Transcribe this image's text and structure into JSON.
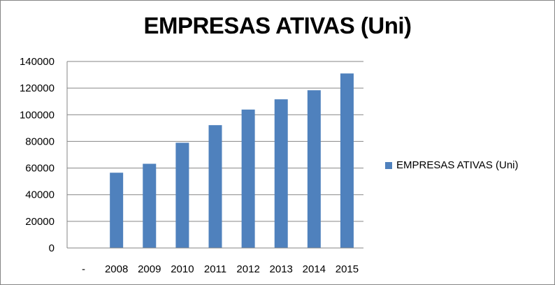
{
  "chart_data": {
    "type": "bar",
    "title": "EMPRESAS ATIVAS (Uni)",
    "xlabel": "",
    "ylabel": "",
    "categories": [
      "-",
      "2008",
      "2009",
      "2010",
      "2011",
      "2012",
      "2013",
      "2014",
      "2015"
    ],
    "series": [
      {
        "name": "EMPRESAS ATIVAS (Uni)",
        "values": [
          0,
          56500,
          63200,
          79000,
          92200,
          103900,
          111600,
          118400,
          131000
        ]
      }
    ],
    "ylim": [
      0,
      140000
    ],
    "yticks": [
      "0",
      "20000",
      "40000",
      "60000",
      "80000",
      "100000",
      "120000",
      "140000"
    ],
    "grid": true,
    "legend": "right",
    "colors": {
      "bar": "#4F81BD",
      "grid": "#868686",
      "axis": "#868686"
    }
  }
}
